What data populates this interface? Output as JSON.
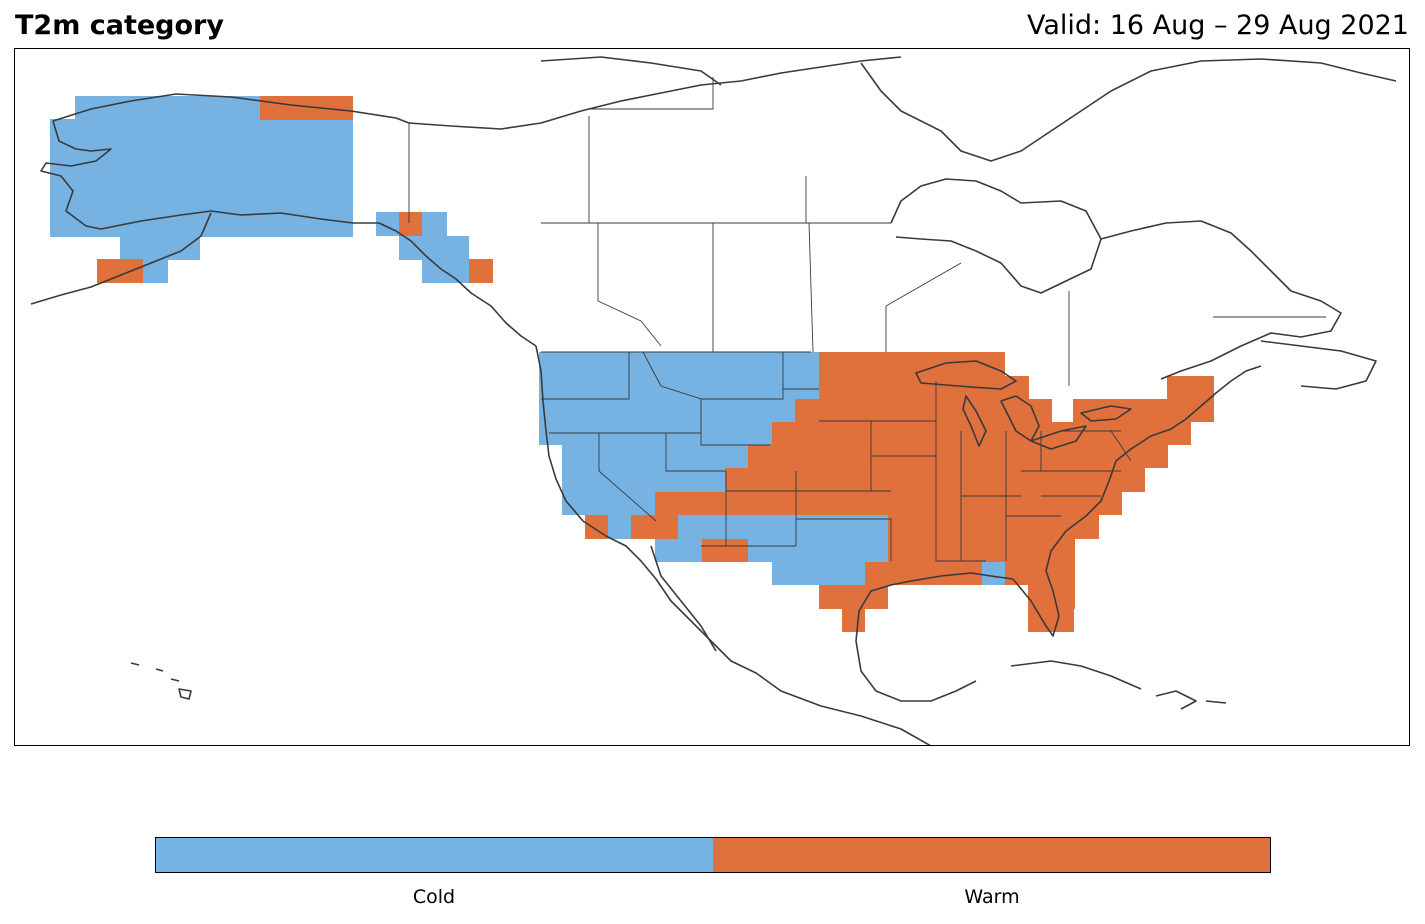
{
  "header": {
    "title": "T2m category",
    "valid": "Valid: 16 Aug – 29 Aug 2021"
  },
  "colors": {
    "cold": "#76b3e2",
    "warm": "#e0703c",
    "coast": "#3a3a3a"
  },
  "legend": {
    "items": [
      {
        "label": "Cold",
        "color": "#76b3e2"
      },
      {
        "label": "Warm",
        "color": "#e0703c"
      }
    ]
  }
}
